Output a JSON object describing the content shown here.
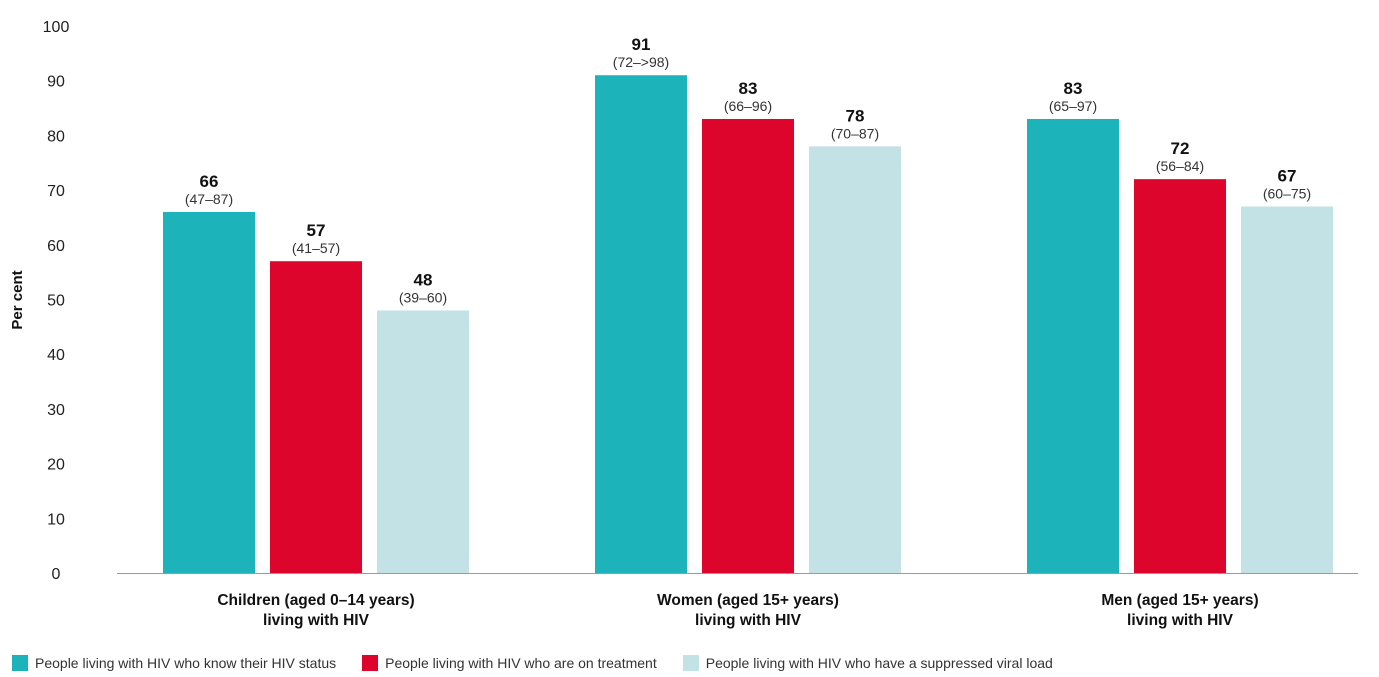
{
  "chart_data": {
    "type": "bar",
    "ylabel": "Per cent",
    "ylim": [
      0,
      100
    ],
    "yticks": [
      "0",
      "10",
      "20",
      "30",
      "40",
      "50",
      "60",
      "70",
      "80",
      "90",
      "100"
    ],
    "grid": false,
    "legend_position": "bottom-left",
    "categories": [
      [
        "Children (aged 0–14 years)",
        "living with HIV"
      ],
      [
        "Women (aged 15+ years)",
        "living with HIV"
      ],
      [
        "Men (aged 15+ years)",
        "living with HIV"
      ]
    ],
    "series": [
      {
        "name": "People living with HIV who know their HIV status",
        "color": "#1DB3BA",
        "values": [
          66,
          91,
          83
        ],
        "ranges": [
          "(47–87)",
          "(72–>98)",
          "(65–97)"
        ]
      },
      {
        "name": "People living with HIV who are on treatment",
        "color": "#DD052B",
        "values": [
          57,
          83,
          72
        ],
        "ranges": [
          "(41–57)",
          "(66–96)",
          "(56–84)"
        ]
      },
      {
        "name": "People living with HIV who have a suppressed viral load",
        "color": "#C2E2E6",
        "values": [
          48,
          78,
          67
        ],
        "ranges": [
          "(39–60)",
          "(70–87)",
          "(60–75)"
        ]
      }
    ]
  }
}
